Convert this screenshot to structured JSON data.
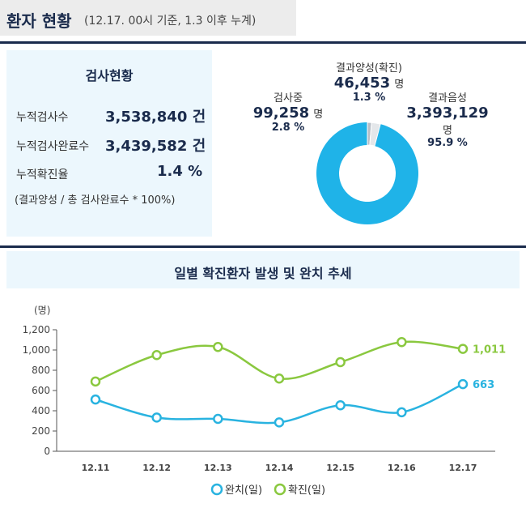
{
  "header": {
    "title": "환자 현황",
    "subtitle": "(12.17. 00시 기준, 1.3 이후 누계)"
  },
  "stats": {
    "heading": "검사현황",
    "rows": [
      {
        "label": "누적검사수",
        "value": "3,538,840 건"
      },
      {
        "label": "누적검사완료수",
        "value": "3,439,582 건"
      },
      {
        "label": "누적확진율",
        "value": "1.4 %"
      }
    ],
    "note": "(결과양성 / 총 검사완료수 * 100%)"
  },
  "donut": {
    "positive": {
      "label": "결과양성(확진)",
      "count": "46,453",
      "unit": "명",
      "pct": "1.3 %",
      "value": 46453,
      "color": "#b8bec6"
    },
    "testing": {
      "label": "검사중",
      "count": "99,258",
      "unit": "명",
      "pct": "2.8 %",
      "value": 99258,
      "color": "#e4e7ea"
    },
    "negative": {
      "label": "결과음성",
      "count": "3,393,129",
      "unit": "명",
      "pct": "95.9 %",
      "value": 3393129,
      "color": "#1fb3e8"
    }
  },
  "chart": {
    "title": "일별 확진환자 발생 및 완치 추세"
  },
  "chart_data": {
    "type": "line",
    "unit_label": "(명)",
    "categories": [
      "12.11",
      "12.12",
      "12.13",
      "12.14",
      "12.15",
      "12.16",
      "12.17"
    ],
    "ylim": [
      0,
      1200
    ],
    "yticks": [
      0,
      200,
      400,
      600,
      800,
      1000,
      1200
    ],
    "ytick_labels": [
      "0",
      "200",
      "400",
      "600",
      "800",
      "1,000",
      "1,200"
    ],
    "grid": false,
    "legend_position": "bottom",
    "series": [
      {
        "name": "완치(일)",
        "color": "#29b3e0",
        "values": [
          511,
          333,
          320,
          285,
          454,
          385,
          663
        ],
        "end_label": "663"
      },
      {
        "name": "확진(일)",
        "color": "#8ac83f",
        "values": [
          689,
          950,
          1030,
          718,
          880,
          1078,
          1011
        ],
        "end_label": "1,011"
      }
    ]
  }
}
